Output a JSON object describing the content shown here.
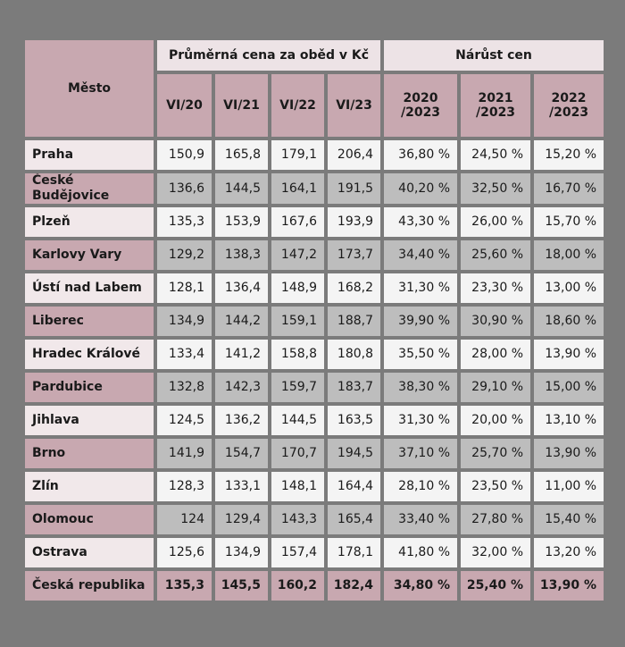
{
  "header": {
    "city": "Město",
    "price_group": "Průměrná cena za oběd v Kč",
    "growth_group": "Nárůst cen",
    "columns": [
      "VI/20",
      "VI/21",
      "VI/22",
      "VI/23",
      "2020\n/2023",
      "2021\n/2023",
      "2022\n/2023"
    ]
  },
  "table": {
    "rows": [
      [
        "Praha",
        "150,9",
        "165,8",
        "179,1",
        "206,4",
        "36,80 %",
        "24,50 %",
        "15,20 %"
      ],
      [
        "České Budějovice",
        "136,6",
        "144,5",
        "164,1",
        "191,5",
        "40,20 %",
        "32,50 %",
        "16,70 %"
      ],
      [
        "Plzeň",
        "135,3",
        "153,9",
        "167,6",
        "193,9",
        "43,30 %",
        "26,00 %",
        "15,70 %"
      ],
      [
        "Karlovy Vary",
        "129,2",
        "138,3",
        "147,2",
        "173,7",
        "34,40 %",
        "25,60 %",
        "18,00 %"
      ],
      [
        "Ústí nad Labem",
        "128,1",
        "136,4",
        "148,9",
        "168,2",
        "31,30 %",
        "23,30 %",
        "13,00 %"
      ],
      [
        "Liberec",
        "134,9",
        "144,2",
        "159,1",
        "188,7",
        "39,90 %",
        "30,90 %",
        "18,60 %"
      ],
      [
        "Hradec Králové",
        "133,4",
        "141,2",
        "158,8",
        "180,8",
        "35,50 %",
        "28,00 %",
        "13,90 %"
      ],
      [
        "Pardubice",
        "132,8",
        "142,3",
        "159,7",
        "183,7",
        "38,30 %",
        "29,10 %",
        "15,00 %"
      ],
      [
        "Jihlava",
        "124,5",
        "136,2",
        "144,5",
        "163,5",
        "31,30 %",
        "20,00 %",
        "13,10 %"
      ],
      [
        "Brno",
        "141,9",
        "154,7",
        "170,7",
        "194,5",
        "37,10 %",
        "25,70 %",
        "13,90 %"
      ],
      [
        "Zlín",
        "128,3",
        "133,1",
        "148,1",
        "164,4",
        "28,10 %",
        "23,50 %",
        "11,00 %"
      ],
      [
        "Olomouc",
        "124",
        "129,4",
        "143,3",
        "165,4",
        "33,40 %",
        "27,80 %",
        "15,40 %"
      ],
      [
        "Ostrava",
        "125,6",
        "134,9",
        "157,4",
        "178,1",
        "41,80 %",
        "32,00 %",
        "13,20 %"
      ],
      [
        "Česká republika",
        "135,3",
        "145,5",
        "160,2",
        "182,4",
        "34,80 %",
        "25,40 %",
        "13,90 %"
      ]
    ]
  }
}
